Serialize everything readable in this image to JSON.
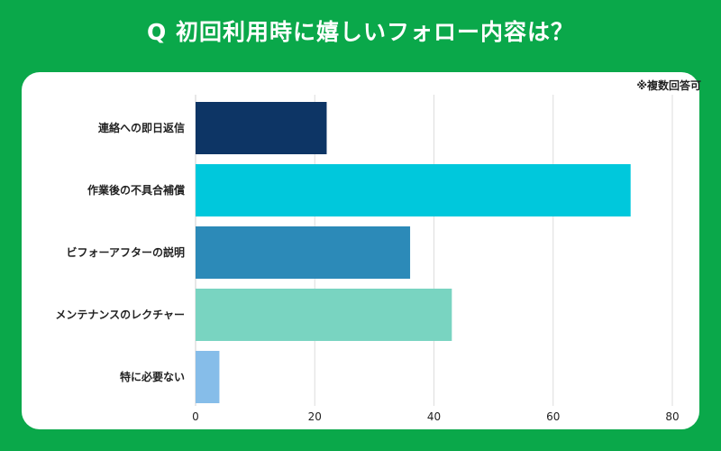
{
  "title": "Q 初回利用時に嬉しいフォロー内容は？",
  "note": "※複数回答可",
  "chart_data": {
    "type": "bar",
    "orientation": "horizontal",
    "categories": [
      "連絡への即日返信",
      "作業後の不具合補償",
      "ビフォーアフターの説明",
      "メンテナンスのレクチャー",
      "特に必要ない"
    ],
    "values": [
      22,
      73,
      36,
      43,
      4
    ],
    "colors": [
      "#0d3565",
      "#00c8dc",
      "#2c8ab8",
      "#79d4c1",
      "#86bde9"
    ],
    "xlim": [
      0,
      80
    ],
    "xticks": [
      0,
      20,
      40,
      60,
      80
    ],
    "grid": true
  }
}
